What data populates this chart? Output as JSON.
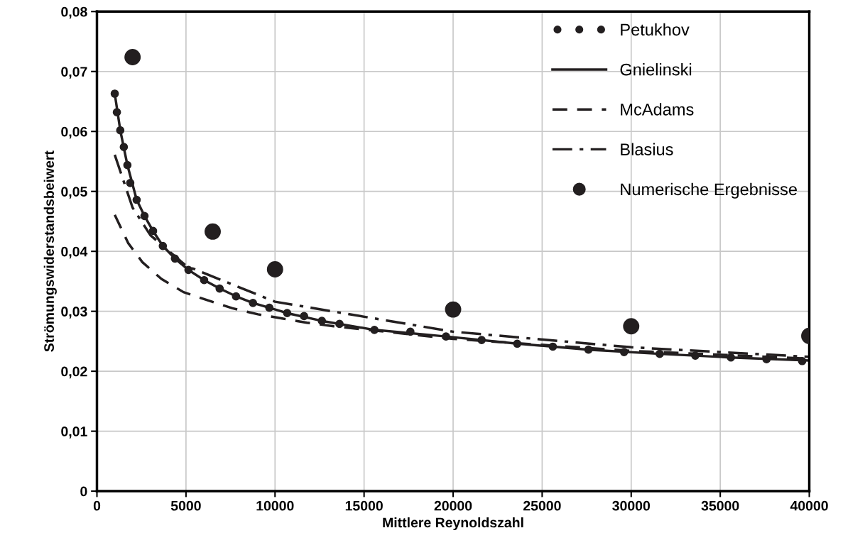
{
  "chart_data": {
    "type": "line",
    "xlabel": "Mittlere Reynoldszahl",
    "ylabel": "Strömungswiderstandsbeiwert",
    "xlim": [
      0,
      40000
    ],
    "xticks": [
      0,
      5000,
      10000,
      15000,
      20000,
      25000,
      30000,
      35000,
      40000
    ],
    "ylim": [
      0,
      0.08
    ],
    "yticks": [
      {
        "value": 0,
        "label": "0"
      },
      {
        "value": 0.01,
        "label": "0,01"
      },
      {
        "value": 0.02,
        "label": "0,02"
      },
      {
        "value": 0.03,
        "label": "0,03"
      },
      {
        "value": 0.04,
        "label": "0,04"
      },
      {
        "value": 0.05,
        "label": "0,05"
      },
      {
        "value": 0.06,
        "label": "0,06"
      },
      {
        "value": 0.07,
        "label": "0,07"
      },
      {
        "value": 0.08,
        "label": "0,08"
      }
    ],
    "grid": true,
    "legend": "top right",
    "series": [
      {
        "name": "Petukhov",
        "type": "scatter",
        "marker": "circle",
        "color": "#231f20",
        "x": [
          1000,
          1120,
          1310,
          1510,
          1710,
          1870,
          2230,
          2670,
          3150,
          3700,
          4380,
          5140,
          6020,
          6890,
          7810,
          8760,
          9680,
          10680,
          11630,
          12630,
          13620,
          15580,
          17600,
          19600,
          21600,
          23600,
          25600,
          27600,
          29600,
          31600,
          33600,
          35600,
          37600,
          39600
        ],
        "values": [
          0.0663,
          0.0632,
          0.0602,
          0.0574,
          0.0544,
          0.0514,
          0.0486,
          0.0459,
          0.0434,
          0.0409,
          0.0388,
          0.0369,
          0.0352,
          0.0338,
          0.0325,
          0.0314,
          0.0306,
          0.0297,
          0.0292,
          0.0284,
          0.0279,
          0.0269,
          0.0266,
          0.0258,
          0.0252,
          0.0246,
          0.0241,
          0.0236,
          0.0232,
          0.0229,
          0.0226,
          0.0223,
          0.022,
          0.0217
        ]
      },
      {
        "name": "Gnielinski",
        "line_style": "solid",
        "color": "#231f20",
        "x": [
          1000,
          1310,
          1710,
          2230,
          2670,
          3150,
          3700,
          4380,
          5140,
          6020,
          6890,
          7810,
          8760,
          9680,
          10680,
          12630,
          15580,
          19600,
          23600,
          27600,
          31600,
          35600,
          40000
        ],
        "values": [
          0.0663,
          0.0602,
          0.0544,
          0.0486,
          0.0459,
          0.0434,
          0.0409,
          0.0388,
          0.0369,
          0.0352,
          0.0338,
          0.0325,
          0.0314,
          0.0306,
          0.0297,
          0.0284,
          0.0269,
          0.0258,
          0.0246,
          0.0236,
          0.0229,
          0.0223,
          0.0218
        ]
      },
      {
        "name": "McAdams",
        "line_style": "dashed",
        "color": "#231f20",
        "x": [
          1000,
          1750,
          2550,
          3620,
          4860,
          6250,
          7610,
          9040,
          10400,
          11790,
          13300,
          20000,
          30000,
          40000
        ],
        "values": [
          0.0461,
          0.0414,
          0.0382,
          0.0354,
          0.0332,
          0.0318,
          0.0305,
          0.0295,
          0.0288,
          0.0281,
          0.0275,
          0.0254,
          0.0234,
          0.0221
        ]
      },
      {
        "name": "Blasius",
        "line_style": "dashdot",
        "color": "#231f20",
        "x": [
          1000,
          2000,
          3000,
          5000,
          10000,
          20000,
          30000,
          40000
        ],
        "values": [
          0.0561,
          0.0473,
          0.0427,
          0.0376,
          0.0316,
          0.0266,
          0.024,
          0.0224
        ]
      },
      {
        "name": "Numerische Ergebnisse",
        "type": "scatter",
        "marker": "circle",
        "color": "#231f20",
        "x": [
          2000,
          6500,
          10000,
          20000,
          30000,
          40000
        ],
        "values": [
          0.0724,
          0.0433,
          0.037,
          0.0303,
          0.0275,
          0.0259
        ]
      }
    ]
  }
}
